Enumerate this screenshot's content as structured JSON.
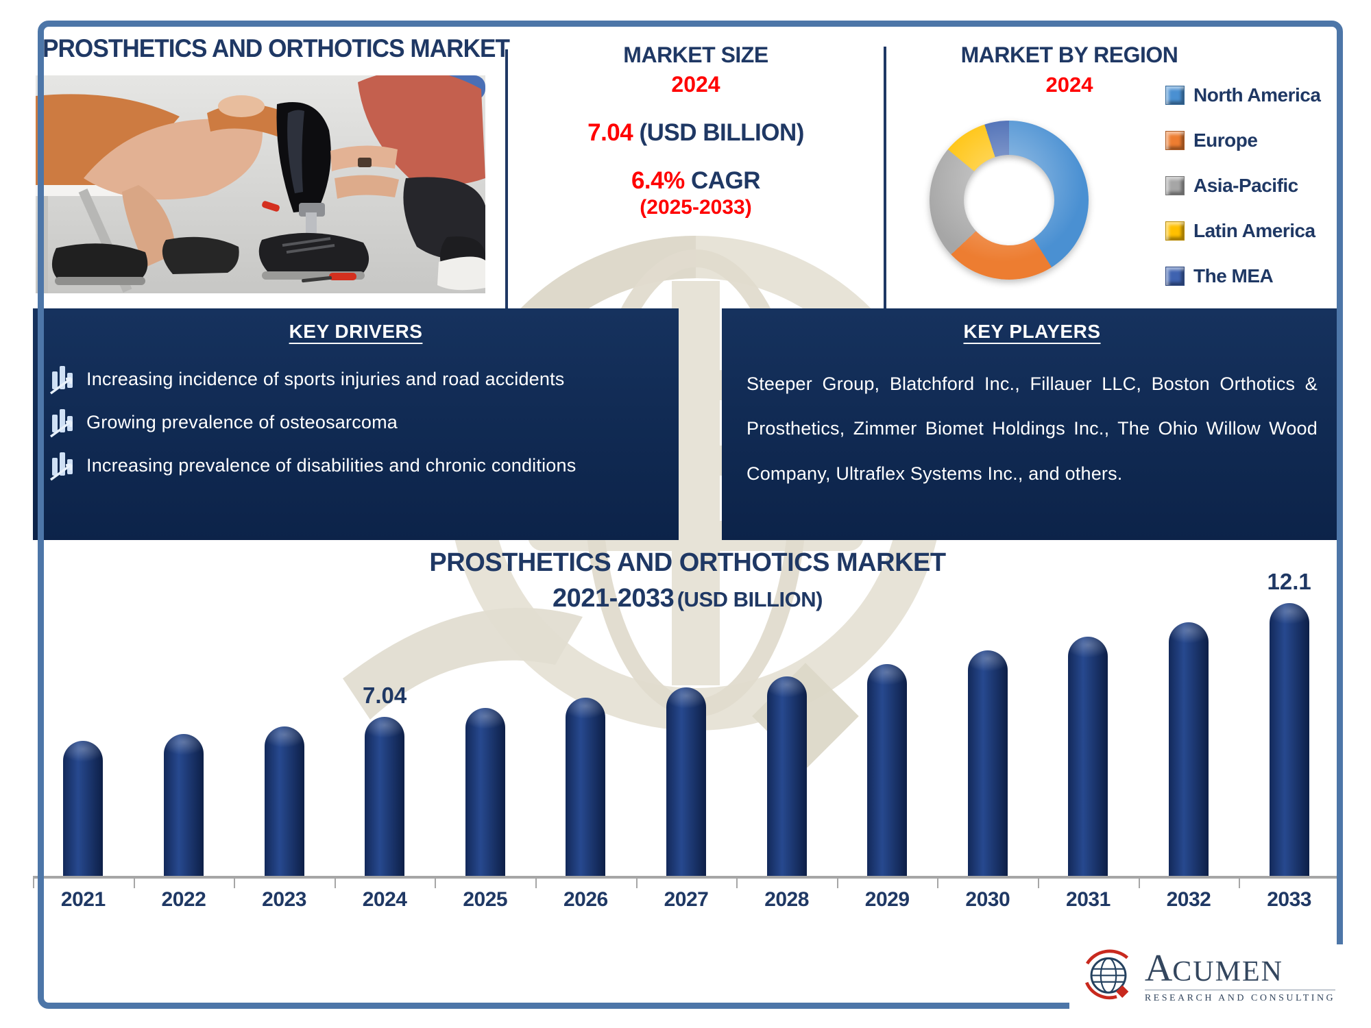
{
  "page": {
    "title": "PROSTHETICS AND ORTHOTICS MARKET"
  },
  "market_size": {
    "heading": "MARKET SIZE",
    "year": "2024",
    "value": "7.04",
    "value_unit": "(USD BILLION)",
    "cagr_value": "6.4%",
    "cagr_label": "CAGR",
    "cagr_period": "(2025-2033)"
  },
  "market_by_region": {
    "heading": "MARKET BY REGION",
    "year": "2024"
  },
  "key_drivers": {
    "heading": "KEY DRIVERS",
    "items": [
      "Increasing incidence of sports injuries and road accidents",
      "Growing prevalence of osteosarcoma",
      "Increasing prevalence of disabilities and chronic conditions"
    ]
  },
  "key_players": {
    "heading": "KEY PLAYERS",
    "text": "Steeper Group, Blatchford Inc., Fillauer LLC, Boston Orthotics & Prosthetics, Zimmer Biomet Holdings Inc., The Ohio Willow Wood Company, Ultraflex Systems Inc., and others."
  },
  "chart_data": [
    {
      "type": "pie",
      "donut": true,
      "title": "MARKET BY REGION",
      "subtitle": "2024",
      "labels": [
        "North America",
        "Europe",
        "Asia-Pacific",
        "Latin America",
        "The MEA"
      ],
      "values": [
        41,
        22,
        23,
        9,
        5
      ],
      "colors": [
        "#4a90d2",
        "#ed7d31",
        "#a6a6a6",
        "#ffc000",
        "#3f63b0"
      ],
      "legend_position": "right"
    },
    {
      "type": "bar",
      "title": "PROSTHETICS AND ORTHOTICS MARKET",
      "subtitle_range": "2021-2033",
      "subtitle_unit": "(USD BILLION)",
      "categories": [
        "2021",
        "2022",
        "2023",
        "2024",
        "2025",
        "2026",
        "2027",
        "2028",
        "2029",
        "2030",
        "2031",
        "2032",
        "2033"
      ],
      "values": [
        6.0,
        6.3,
        6.62,
        7.04,
        7.45,
        7.9,
        8.35,
        8.85,
        9.4,
        10.0,
        10.6,
        11.25,
        12.1
      ],
      "shown_labels": {
        "2024": "7.04",
        "2033": "12.1"
      },
      "bar_color": "#152e63",
      "axis_color": "#a6a6a6",
      "ylim": [
        0,
        12.6
      ],
      "grid": false,
      "legend_position": "none"
    }
  ],
  "logo": {
    "name_initial": "A",
    "name_rest": "CUMEN",
    "tagline": "RESEARCH AND CONSULTING"
  },
  "colors": {
    "navy_text": "#1f3864",
    "accent_red": "#ff0000",
    "frame_blue": "#4d76a8",
    "box_navy": "#112b54",
    "bar_navy": "#152e63",
    "axis_gray": "#a6a6a6"
  }
}
